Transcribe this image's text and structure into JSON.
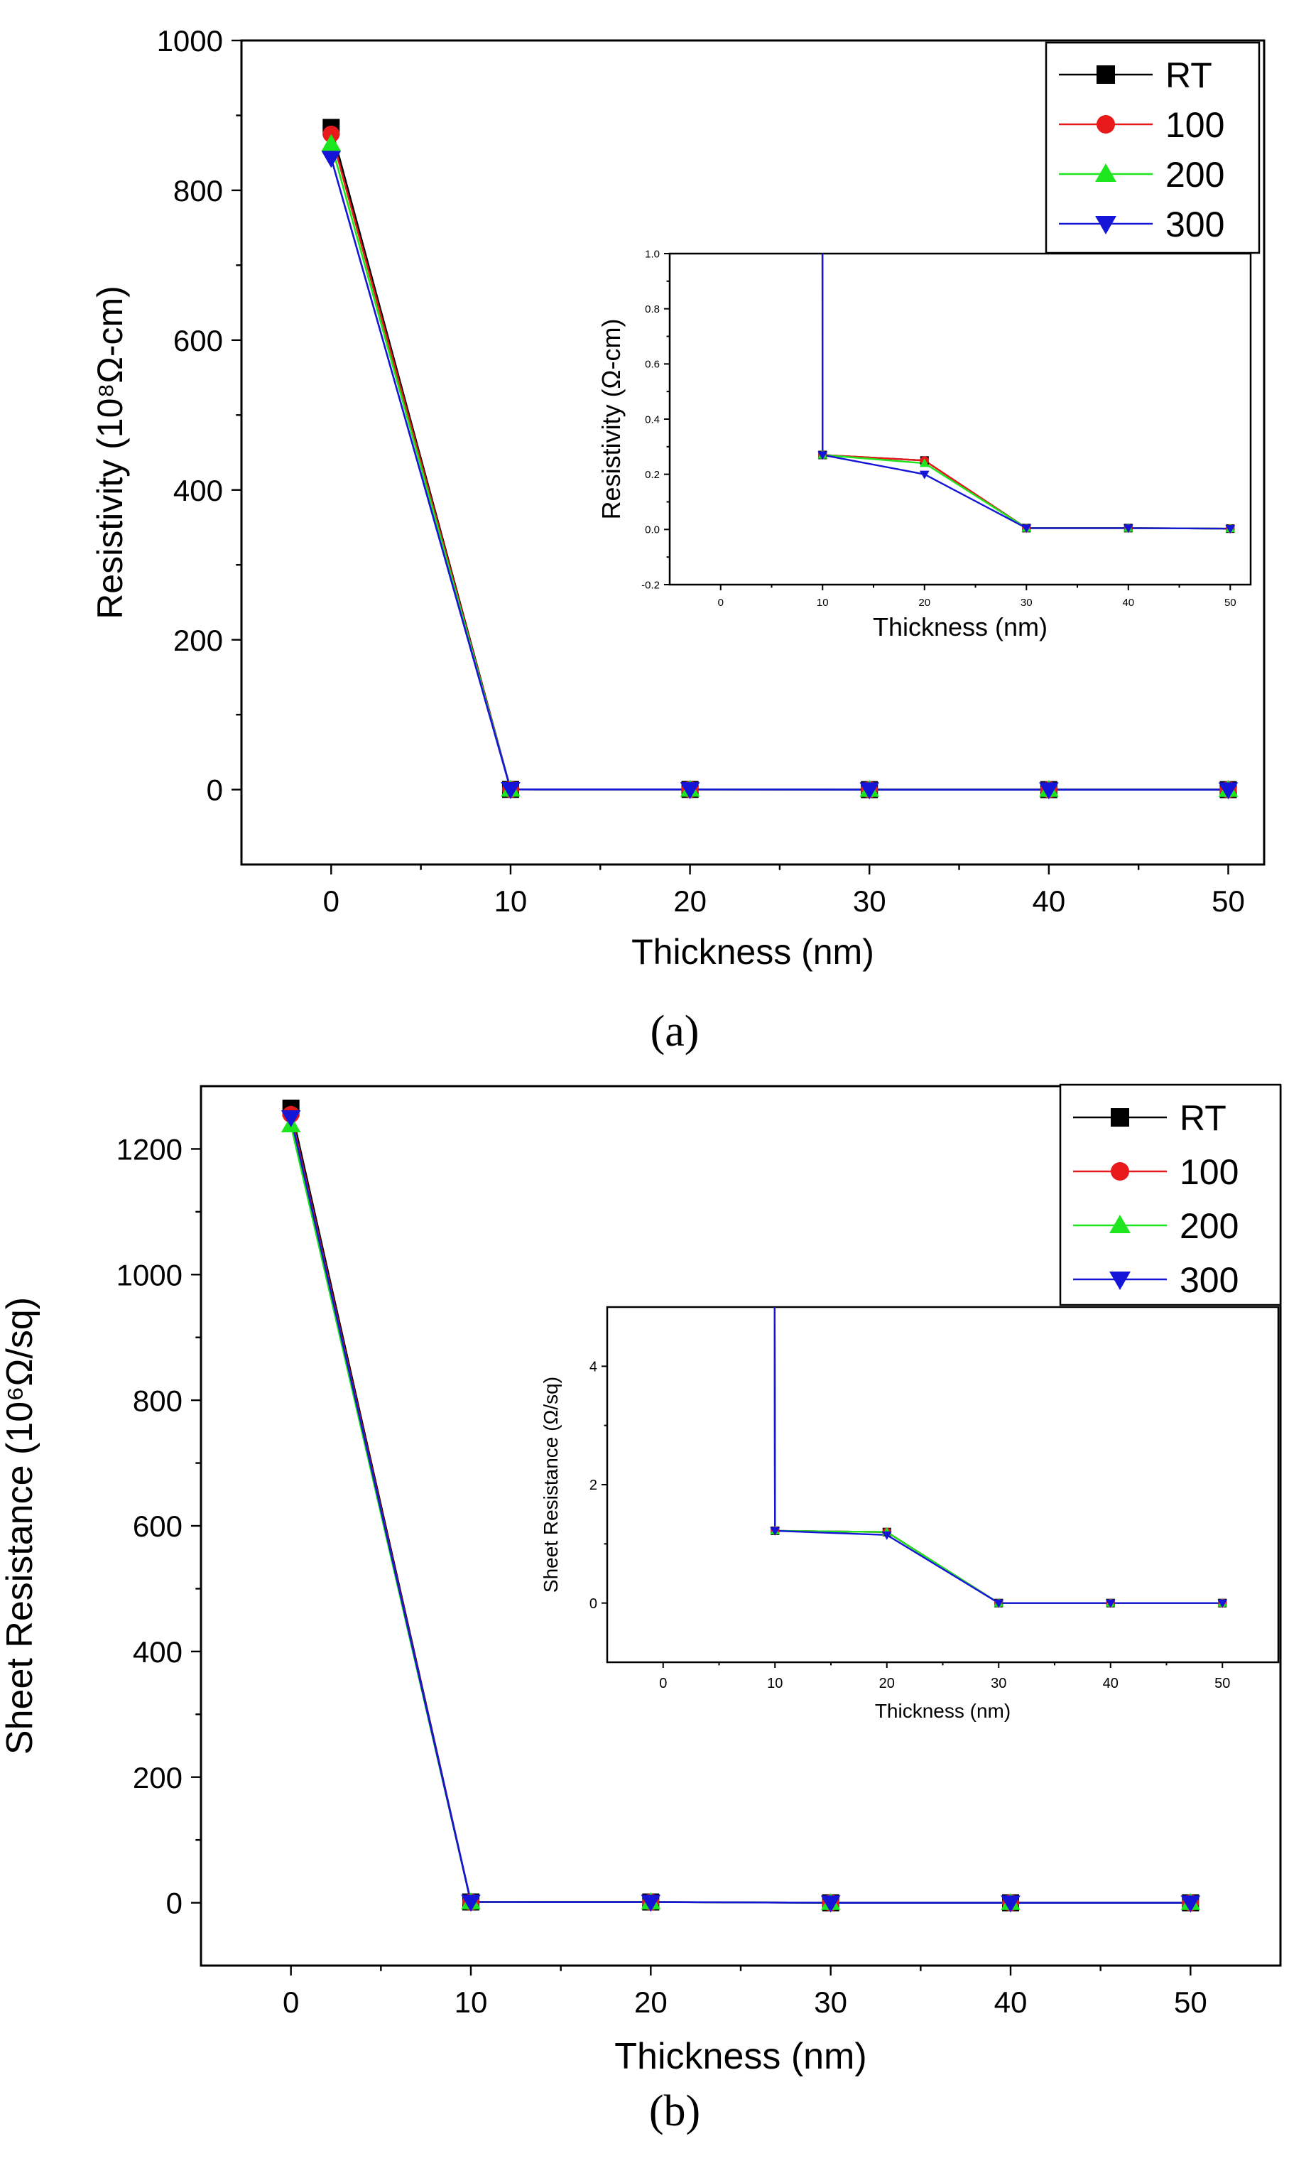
{
  "chart_data": [
    {
      "panel_label": "(a)",
      "type": "line",
      "xlabel": "Thickness (nm)",
      "ylabel": "Resistivity (10⁸Ω-cm)",
      "xlim": [
        -5,
        52
      ],
      "ylim": [
        -100,
        1000
      ],
      "xticks": [
        0,
        10,
        20,
        30,
        40,
        50
      ],
      "yticks": [
        0,
        200,
        400,
        600,
        800,
        1000
      ],
      "legend_position": "top-right",
      "x": [
        0,
        10,
        20,
        30,
        40,
        50
      ],
      "series": [
        {
          "name": "RT",
          "color": "#000000",
          "marker": "square",
          "values": [
            884,
            0.27,
            0.25,
            0.005,
            0.005,
            0.003
          ]
        },
        {
          "name": "100",
          "color": "#e8191b",
          "marker": "circle",
          "values": [
            875,
            0.27,
            0.25,
            0.005,
            0.005,
            0.003
          ]
        },
        {
          "name": "200",
          "color": "#1ee61e",
          "marker": "triangle-up",
          "values": [
            862,
            0.27,
            0.24,
            0.005,
            0.005,
            0.003
          ]
        },
        {
          "name": "300",
          "color": "#1515d8",
          "marker": "triangle-down",
          "values": [
            843,
            0.27,
            0.2,
            0.005,
            0.005,
            0.003
          ]
        }
      ],
      "inset": {
        "xlabel": "Thickness (nm)",
        "ylabel": "Resistivity (Ω-cm)",
        "xlim": [
          -5,
          52
        ],
        "ylim": [
          -0.2,
          1.0
        ],
        "xticks": [
          0,
          10,
          20,
          30,
          40,
          50
        ],
        "yticks": [
          -0.2,
          0.0,
          0.2,
          0.4,
          0.6,
          0.8,
          1.0
        ],
        "ytick_labels": [
          "-0.2",
          "0.0",
          "0.2",
          "0.4",
          "0.6",
          "0.8",
          "1.0"
        ]
      }
    },
    {
      "panel_label": "(b)",
      "type": "line",
      "xlabel": "Thickness (nm)",
      "ylabel": "Sheet Resistance (10⁶Ω/sq)",
      "xlim": [
        -5,
        55
      ],
      "ylim": [
        -100,
        1300
      ],
      "xticks": [
        0,
        10,
        20,
        30,
        40,
        50
      ],
      "yticks": [
        0,
        200,
        400,
        600,
        800,
        1000,
        1200
      ],
      "legend_position": "top-right",
      "x": [
        0,
        10,
        20,
        30,
        40,
        50
      ],
      "series": [
        {
          "name": "RT",
          "color": "#000000",
          "marker": "square",
          "values": [
            1265,
            1.22,
            1.2,
            0.0,
            0.0,
            0.0
          ]
        },
        {
          "name": "100",
          "color": "#e8191b",
          "marker": "circle",
          "values": [
            1255,
            1.22,
            1.2,
            0.0,
            0.0,
            0.0
          ]
        },
        {
          "name": "200",
          "color": "#1ee61e",
          "marker": "triangle-up",
          "values": [
            1238,
            1.22,
            1.2,
            0.0,
            0.0,
            0.0
          ]
        },
        {
          "name": "300",
          "color": "#1515d8",
          "marker": "triangle-down",
          "values": [
            1250,
            1.22,
            1.15,
            0.0,
            0.0,
            0.0
          ]
        }
      ],
      "inset": {
        "xlabel": "Thickness (nm)",
        "ylabel": "Sheet Resistance  (Ω/sq)",
        "xlim": [
          -5,
          55
        ],
        "ylim": [
          -1,
          5
        ],
        "xticks": [
          0,
          10,
          20,
          30,
          40,
          50
        ],
        "yticks": [
          0,
          2,
          4
        ],
        "ytick_labels": [
          "0",
          "2",
          "4"
        ]
      }
    }
  ]
}
